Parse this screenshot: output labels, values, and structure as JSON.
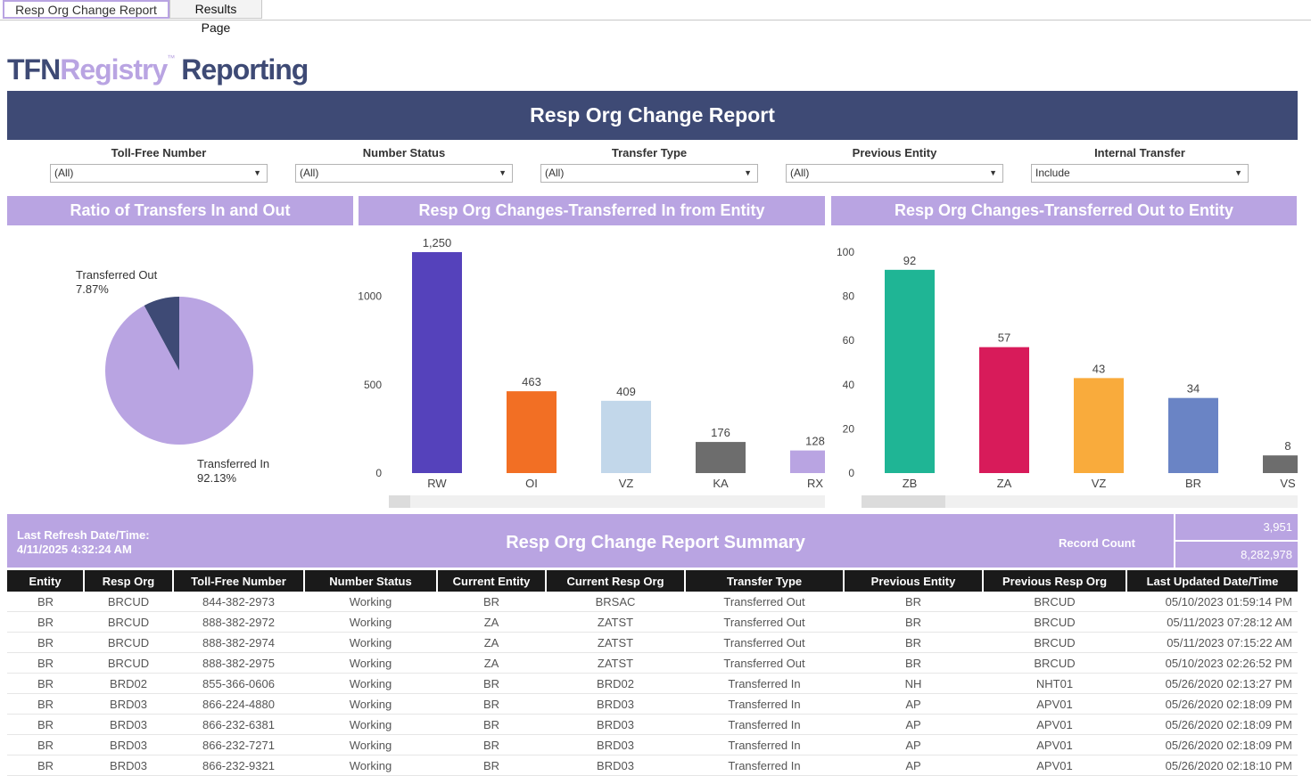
{
  "tabs": [
    "Resp Org Change Report",
    "Results Page"
  ],
  "logo": {
    "part1": "TFN",
    "part2": "Registry",
    "tm": "™",
    "part3": "Reporting"
  },
  "banner_title": "Resp Org Change Report",
  "filters": [
    {
      "label": "Toll-Free Number",
      "value": "(All)"
    },
    {
      "label": "Number Status",
      "value": "(All)"
    },
    {
      "label": "Transfer Type",
      "value": "(All)"
    },
    {
      "label": "Previous Entity",
      "value": "(All)"
    },
    {
      "label": "Internal Transfer",
      "value": "Include"
    }
  ],
  "panels": {
    "pie": "Ratio of Transfers In and Out",
    "in": "Resp Org Changes-Transferred In from Entity",
    "out": "Resp Org Changes-Transferred Out to Entity"
  },
  "pie_labels": {
    "out_name": "Transferred Out",
    "out_pct": "7.87%",
    "in_name": "Transferred In",
    "in_pct": "92.13%"
  },
  "colors": {
    "navy": "#3e4a75",
    "lavender": "#b9a4e2"
  },
  "chart_data": [
    {
      "type": "pie",
      "title": "Ratio of Transfers In and Out",
      "categories": [
        "Transferred Out",
        "Transferred In"
      ],
      "values": [
        7.87,
        92.13
      ],
      "colors": [
        "#3e4a75",
        "#b9a4e2"
      ]
    },
    {
      "type": "bar",
      "title": "Resp Org Changes-Transferred In from Entity",
      "categories": [
        "RW",
        "OI",
        "VZ",
        "KA",
        "RX"
      ],
      "values": [
        1250,
        463,
        409,
        176,
        128
      ],
      "labels": [
        "1,250",
        "463",
        "409",
        "176",
        "128"
      ],
      "colors": [
        "#5542bb",
        "#f26f24",
        "#c2d7ea",
        "#6d6d6d",
        "#b9a4e2"
      ],
      "yticks": [
        "0",
        "500",
        "1000"
      ],
      "ytick_values": [
        0,
        500,
        1000
      ],
      "ylim": [
        0,
        1250
      ]
    },
    {
      "type": "bar",
      "title": "Resp Org Changes-Transferred Out to Entity",
      "categories": [
        "ZB",
        "ZA",
        "VZ",
        "BR",
        "VS"
      ],
      "values": [
        92,
        57,
        43,
        34,
        8
      ],
      "labels": [
        "92",
        "57",
        "43",
        "34",
        "8"
      ],
      "colors": [
        "#1fb595",
        "#d81b5a",
        "#f9ab3c",
        "#6a84c5",
        "#6d6d6d"
      ],
      "yticks": [
        "0",
        "20",
        "40",
        "60",
        "80",
        "100"
      ],
      "ytick_values": [
        0,
        20,
        40,
        60,
        80,
        100
      ],
      "ylim": [
        0,
        100
      ]
    }
  ],
  "summary": {
    "refresh_label": "Last Refresh Date/Time:",
    "refresh_value": "4/11/2025 4:32:24 AM",
    "title": "Resp Org Change Report Summary",
    "record_count_label": "Record Count",
    "counts": [
      "3,951",
      "8,282,978"
    ]
  },
  "table": {
    "columns": [
      "Entity",
      "Resp Org",
      "Toll-Free Number",
      "Number Status",
      "Current Entity",
      "Current Resp Org",
      "Transfer Type",
      "Previous Entity",
      "Previous Resp Org",
      "Last Updated Date/Time"
    ],
    "rows": [
      [
        "BR",
        "BRCUD",
        "844-382-2973",
        "Working",
        "BR",
        "BRSAC",
        "Transferred Out",
        "BR",
        "BRCUD",
        "05/10/2023 01:59:14 PM"
      ],
      [
        "BR",
        "BRCUD",
        "888-382-2972",
        "Working",
        "ZA",
        "ZATST",
        "Transferred Out",
        "BR",
        "BRCUD",
        "05/11/2023 07:28:12 AM"
      ],
      [
        "BR",
        "BRCUD",
        "888-382-2974",
        "Working",
        "ZA",
        "ZATST",
        "Transferred Out",
        "BR",
        "BRCUD",
        "05/11/2023 07:15:22 AM"
      ],
      [
        "BR",
        "BRCUD",
        "888-382-2975",
        "Working",
        "ZA",
        "ZATST",
        "Transferred Out",
        "BR",
        "BRCUD",
        "05/10/2023 02:26:52 PM"
      ],
      [
        "BR",
        "BRD02",
        "855-366-0606",
        "Working",
        "BR",
        "BRD02",
        "Transferred In",
        "NH",
        "NHT01",
        "05/26/2020 02:13:27 PM"
      ],
      [
        "BR",
        "BRD03",
        "866-224-4880",
        "Working",
        "BR",
        "BRD03",
        "Transferred In",
        "AP",
        "APV01",
        "05/26/2020 02:18:09 PM"
      ],
      [
        "BR",
        "BRD03",
        "866-232-6381",
        "Working",
        "BR",
        "BRD03",
        "Transferred In",
        "AP",
        "APV01",
        "05/26/2020 02:18:09 PM"
      ],
      [
        "BR",
        "BRD03",
        "866-232-7271",
        "Working",
        "BR",
        "BRD03",
        "Transferred In",
        "AP",
        "APV01",
        "05/26/2020 02:18:09 PM"
      ],
      [
        "BR",
        "BRD03",
        "866-232-9321",
        "Working",
        "BR",
        "BRD03",
        "Transferred In",
        "AP",
        "APV01",
        "05/26/2020 02:18:10 PM"
      ]
    ]
  }
}
